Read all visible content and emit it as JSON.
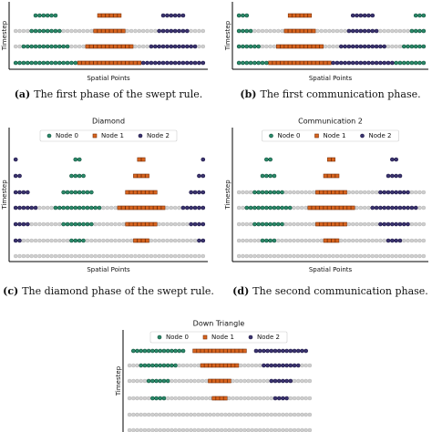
{
  "panels": [
    {
      "label": "(a)",
      "caption": "The first phase of the swept rule.",
      "xlabel": "Spatial Points",
      "ylabel": "Timestep"
    },
    {
      "label": "(b)",
      "caption": "The first communication phase.",
      "xlabel": "Spatial Points",
      "ylabel": "Timestep"
    },
    {
      "title": "Diamond",
      "legend": [
        "Node 0",
        "Node 1",
        "Node 2"
      ],
      "label": "(c)",
      "caption": "The diamond phase of the swept rule.",
      "xlabel": "Spatial Points",
      "ylabel": "Timestep"
    },
    {
      "title": "Communication 2",
      "legend": [
        "Node 0",
        "Node 1",
        "Node 2"
      ],
      "label": "(d)",
      "caption": "The second communication phase.",
      "xlabel": "Spatial Points",
      "ylabel": "Timestep"
    },
    {
      "title": "Down Triangle",
      "legend": [
        "Node 0",
        "Node 1",
        "Node 2"
      ],
      "ylabel": "Timestep"
    }
  ]
}
